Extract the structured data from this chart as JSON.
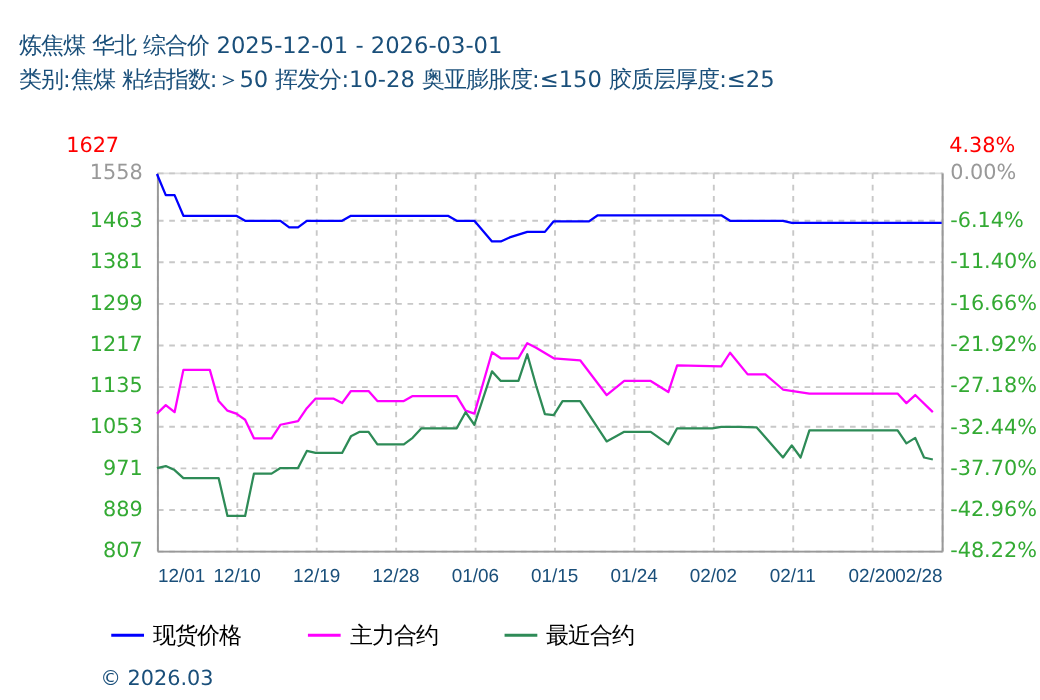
{
  "chart_data": {
    "type": "line",
    "title": "炼焦煤 华北 综合价 2025-12-01 - 2026-03-01",
    "subtitle": "类别:焦煤 粘结指数:＞50 挥发分:10-28 奥亚膨胀度:≤150 胶质层厚度:≤25",
    "xlim": [
      "2025-12-01",
      "2026-02-28"
    ],
    "xticks": [
      {
        "value": "2025-12-01",
        "label": "12/01"
      },
      {
        "value": "2025-12-10",
        "label": "12/10"
      },
      {
        "value": "2025-12-19",
        "label": "12/19"
      },
      {
        "value": "2025-12-28",
        "label": "12/28"
      },
      {
        "value": "2026-01-06",
        "label": "01/06"
      },
      {
        "value": "2026-01-15",
        "label": "01/15"
      },
      {
        "value": "2026-01-24",
        "label": "01/24"
      },
      {
        "value": "2026-02-02",
        "label": "02/02"
      },
      {
        "value": "2026-02-11",
        "label": "02/11"
      },
      {
        "value": "2026-02-20",
        "label": "02/20"
      },
      {
        "value": "2026-02-28",
        "label": "02/28"
      }
    ],
    "ylim": [
      807,
      1558
    ],
    "yticks": [
      807,
      889,
      971,
      1053,
      1135,
      1217,
      1299,
      1381,
      1463,
      1558
    ],
    "y2lim": [
      -48.22,
      0
    ],
    "y2ticks": [
      {
        "value": -48.22,
        "label": "-48.22%"
      },
      {
        "value": -42.96,
        "label": "-42.96%"
      },
      {
        "value": -37.7,
        "label": "-37.70%"
      },
      {
        "value": -32.44,
        "label": "-32.44%"
      },
      {
        "value": -27.18,
        "label": "-27.18%"
      },
      {
        "value": -21.92,
        "label": "-21.92%"
      },
      {
        "value": -16.66,
        "label": "-16.66%"
      },
      {
        "value": -11.4,
        "label": "-11.40%"
      },
      {
        "value": -6.14,
        "label": "-6.14%"
      },
      {
        "value": 0,
        "label": "0.00%"
      }
    ],
    "grid": true,
    "legend": "bottom",
    "line_style": "solid",
    "marker": "none",
    "annotations": [
      "1627",
      "4.38%",
      "© 2026.03"
    ],
    "series": [
      {
        "name": "现货价格",
        "color": "#0000ff",
        "x": [
          "2025-12-01",
          "2025-12-02",
          "2025-12-03",
          "2025-12-04",
          "2025-12-10",
          "2025-12-11",
          "2025-12-15",
          "2025-12-16",
          "2025-12-17",
          "2025-12-18",
          "2025-12-22",
          "2025-12-23",
          "2026-01-03",
          "2026-01-04",
          "2026-01-06",
          "2026-01-08",
          "2026-01-09",
          "2026-01-10",
          "2026-01-12",
          "2026-01-14",
          "2026-01-15",
          "2026-01-19",
          "2026-01-20",
          "2026-02-03",
          "2026-02-04",
          "2026-02-10",
          "2026-02-11",
          "2026-02-28"
        ],
        "values": [
          1555,
          1513,
          1513,
          1472,
          1472,
          1462,
          1462,
          1449,
          1449,
          1462,
          1462,
          1472,
          1472,
          1462,
          1462,
          1421,
          1421,
          1429,
          1440,
          1440,
          1461,
          1461,
          1473,
          1473,
          1462,
          1462,
          1458,
          1458
        ]
      },
      {
        "name": "主力合约",
        "color": "#ff00ff",
        "x": [
          "2025-12-01",
          "2025-12-02",
          "2025-12-03",
          "2025-12-04",
          "2025-12-07",
          "2025-12-08",
          "2025-12-09",
          "2025-12-10",
          "2025-12-11",
          "2025-12-12",
          "2025-12-14",
          "2025-12-15",
          "2025-12-17",
          "2025-12-18",
          "2025-12-19",
          "2025-12-21",
          "2025-12-22",
          "2025-12-23",
          "2025-12-25",
          "2025-12-26",
          "2025-12-29",
          "2025-12-30",
          "2026-01-04",
          "2026-01-05",
          "2026-01-06",
          "2026-01-08",
          "2026-01-09",
          "2026-01-11",
          "2026-01-12",
          "2026-01-13",
          "2026-01-15",
          "2026-01-18",
          "2026-01-21",
          "2026-01-23",
          "2026-01-26",
          "2026-01-28",
          "2026-01-29",
          "2026-02-03",
          "2026-02-04",
          "2026-02-06",
          "2026-02-08",
          "2026-02-10",
          "2026-02-13",
          "2026-02-23",
          "2026-02-24",
          "2026-02-25",
          "2026-02-27"
        ],
        "values": [
          1079,
          1096,
          1082,
          1166,
          1166,
          1104,
          1085,
          1079,
          1067,
          1030,
          1030,
          1057,
          1064,
          1090,
          1109,
          1109,
          1100,
          1124,
          1124,
          1104,
          1104,
          1114,
          1114,
          1085,
          1079,
          1201,
          1189,
          1189,
          1219,
          1210,
          1189,
          1185,
          1116,
          1144,
          1144,
          1122,
          1175,
          1173,
          1200,
          1157,
          1157,
          1127,
          1119,
          1119,
          1100,
          1116,
          1082
        ]
      },
      {
        "name": "最近合约",
        "color": "#2e8b57",
        "x": [
          "2025-12-01",
          "2025-12-02",
          "2025-12-03",
          "2025-12-04",
          "2025-12-08",
          "2025-12-09",
          "2025-12-11",
          "2025-12-12",
          "2025-12-14",
          "2025-12-15",
          "2025-12-17",
          "2025-12-18",
          "2025-12-19",
          "2025-12-22",
          "2025-12-23",
          "2025-12-24",
          "2025-12-25",
          "2025-12-26",
          "2025-12-29",
          "2025-12-30",
          "2025-12-31",
          "2026-01-04",
          "2026-01-05",
          "2026-01-06",
          "2026-01-08",
          "2026-01-09",
          "2026-01-11",
          "2026-01-12",
          "2026-01-13",
          "2026-01-14",
          "2026-01-15",
          "2026-01-16",
          "2026-01-18",
          "2026-01-21",
          "2026-01-23",
          "2026-01-26",
          "2026-01-28",
          "2026-01-29",
          "2026-02-02",
          "2026-02-03",
          "2026-02-05",
          "2026-02-07",
          "2026-02-10",
          "2026-02-11",
          "2026-02-12",
          "2026-02-13",
          "2026-02-23",
          "2026-02-24",
          "2026-02-25",
          "2026-02-26",
          "2026-02-27"
        ],
        "values": [
          971,
          975,
          967,
          951,
          951,
          876,
          876,
          960,
          960,
          971,
          971,
          1005,
          1001,
          1001,
          1034,
          1043,
          1043,
          1018,
          1018,
          1031,
          1050,
          1050,
          1082,
          1057,
          1163,
          1144,
          1144,
          1197,
          1135,
          1078,
          1076,
          1104,
          1104,
          1024,
          1043,
          1043,
          1018,
          1050,
          1050,
          1053,
          1053,
          1052,
          992,
          1016,
          992,
          1046,
          1046,
          1020,
          1031,
          992,
          988
        ]
      }
    ]
  }
}
